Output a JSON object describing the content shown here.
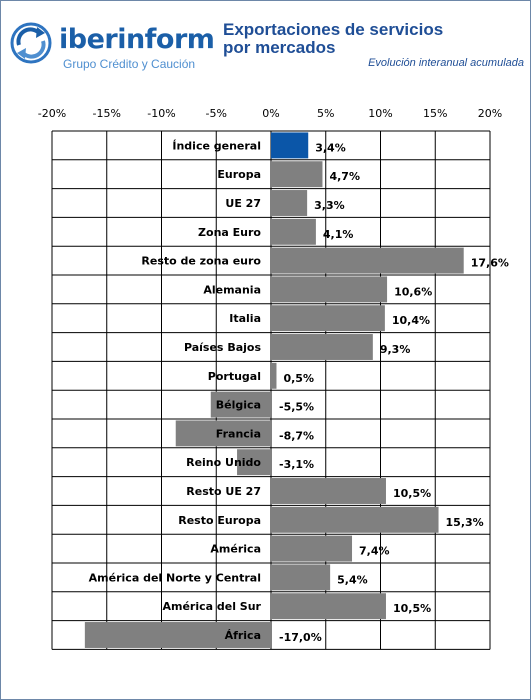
{
  "header": {
    "brand": "iberinform",
    "tagline": "Grupo Crédito y Caución",
    "title_line1": "Exportaciones de servicios",
    "title_line2": "por mercados",
    "subtitle": "Evolución interanual acumulada"
  },
  "chart_data": {
    "type": "bar",
    "orientation": "horizontal",
    "title": "Exportaciones de servicios por mercados",
    "subtitle": "Evolución interanual acumulada",
    "xlim": [
      -20,
      20
    ],
    "tick_values": [
      -20,
      -15,
      -10,
      -5,
      0,
      5,
      10,
      15,
      20
    ],
    "tick_labels": [
      "-20%",
      "-15%",
      "-10%",
      "-5%",
      "0%",
      "5%",
      "10%",
      "15%",
      "20%"
    ],
    "grid": true,
    "categories": [
      "Índice general",
      "Europa",
      "UE 27",
      "Zona Euro",
      "Resto de zona euro",
      "Alemania",
      "Italia",
      "Países Bajos",
      "Portugal",
      "Bélgica",
      "Francia",
      "Reino Unido",
      "Resto UE 27",
      "Resto Europa",
      "América",
      "América del Norte y Central",
      "América del Sur",
      "África"
    ],
    "values": [
      3.4,
      4.7,
      3.3,
      4.1,
      17.6,
      10.6,
      10.4,
      9.3,
      0.5,
      -5.5,
      -8.7,
      -3.1,
      10.5,
      15.3,
      7.4,
      5.4,
      10.5,
      -17.0
    ],
    "value_labels": [
      "3,4%",
      "4,7%",
      "3,3%",
      "4,1%",
      "17,6%",
      "10,6%",
      "10,4%",
      "9,3%",
      "0,5%",
      "-5,5%",
      "-8,7%",
      "-3,1%",
      "10,5%",
      "15,3%",
      "7,4%",
      "5,4%",
      "10,5%",
      "-17,0%"
    ],
    "colors": {
      "highlight": "#0b56a8",
      "bar": "#808080",
      "grid": "#000000"
    }
  }
}
